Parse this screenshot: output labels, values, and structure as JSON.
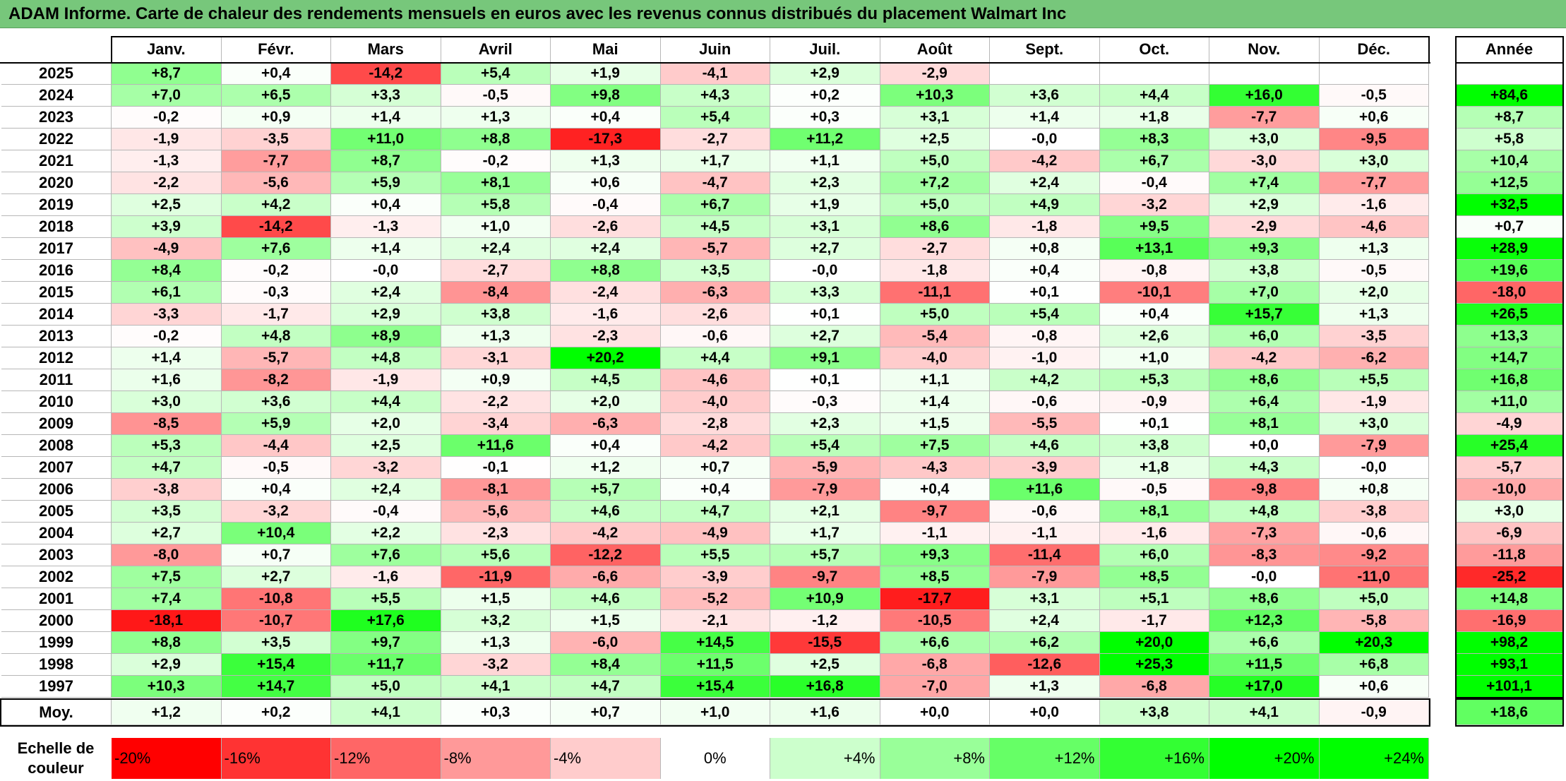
{
  "title": "ADAM Informe. Carte de chaleur des rendements mensuels en euros avec les revenus connus distribués du placement Walmart Inc",
  "chart_data": {
    "type": "heatmap",
    "title": "ADAM Informe. Carte de chaleur des rendements mensuels en euros avec les revenus connus distribués du placement Walmart Inc",
    "months": [
      "Janv.",
      "Févr.",
      "Mars",
      "Avril",
      "Mai",
      "Juin",
      "Juil.",
      "Août",
      "Sept.",
      "Oct.",
      "Nov.",
      "Déc."
    ],
    "year_header": "Année",
    "rows": [
      {
        "year": "2025",
        "values": [
          "+8,7",
          "+0,4",
          "-14,2",
          "+5,4",
          "+1,9",
          "-4,1",
          "+2,9",
          "-2,9",
          "",
          "",
          "",
          ""
        ],
        "annual": ""
      },
      {
        "year": "2024",
        "values": [
          "+7,0",
          "+6,5",
          "+3,3",
          "-0,5",
          "+9,8",
          "+4,3",
          "+0,2",
          "+10,3",
          "+3,6",
          "+4,4",
          "+16,0",
          "-0,5"
        ],
        "annual": "+84,6"
      },
      {
        "year": "2023",
        "values": [
          "-0,2",
          "+0,9",
          "+1,4",
          "+1,3",
          "+0,4",
          "+5,4",
          "+0,3",
          "+3,1",
          "+1,4",
          "+1,8",
          "-7,7",
          "+0,6"
        ],
        "annual": "+8,7"
      },
      {
        "year": "2022",
        "values": [
          "-1,9",
          "-3,5",
          "+11,0",
          "+8,8",
          "-17,3",
          "-2,7",
          "+11,2",
          "+2,5",
          "-0,0",
          "+8,3",
          "+3,0",
          "-9,5"
        ],
        "annual": "+5,8"
      },
      {
        "year": "2021",
        "values": [
          "-1,3",
          "-7,7",
          "+8,7",
          "-0,2",
          "+1,3",
          "+1,7",
          "+1,1",
          "+5,0",
          "-4,2",
          "+6,7",
          "-3,0",
          "+3,0"
        ],
        "annual": "+10,4"
      },
      {
        "year": "2020",
        "values": [
          "-2,2",
          "-5,6",
          "+5,9",
          "+8,1",
          "+0,6",
          "-4,7",
          "+2,3",
          "+7,2",
          "+2,4",
          "-0,4",
          "+7,4",
          "-7,7"
        ],
        "annual": "+12,5"
      },
      {
        "year": "2019",
        "values": [
          "+2,5",
          "+4,2",
          "+0,4",
          "+5,8",
          "-0,4",
          "+6,7",
          "+1,9",
          "+5,0",
          "+4,9",
          "-3,2",
          "+2,9",
          "-1,6"
        ],
        "annual": "+32,5"
      },
      {
        "year": "2018",
        "values": [
          "+3,9",
          "-14,2",
          "-1,3",
          "+1,0",
          "-2,6",
          "+4,5",
          "+3,1",
          "+8,6",
          "-1,8",
          "+9,5",
          "-2,9",
          "-4,6"
        ],
        "annual": "+0,7"
      },
      {
        "year": "2017",
        "values": [
          "-4,9",
          "+7,6",
          "+1,4",
          "+2,4",
          "+2,4",
          "-5,7",
          "+2,7",
          "-2,7",
          "+0,8",
          "+13,1",
          "+9,3",
          "+1,3"
        ],
        "annual": "+28,9"
      },
      {
        "year": "2016",
        "values": [
          "+8,4",
          "-0,2",
          "-0,0",
          "-2,7",
          "+8,8",
          "+3,5",
          "-0,0",
          "-1,8",
          "+0,4",
          "-0,8",
          "+3,8",
          "-0,5"
        ],
        "annual": "+19,6"
      },
      {
        "year": "2015",
        "values": [
          "+6,1",
          "-0,3",
          "+2,4",
          "-8,4",
          "-2,4",
          "-6,3",
          "+3,3",
          "-11,1",
          "+0,1",
          "-10,1",
          "+7,0",
          "+2,0"
        ],
        "annual": "-18,0"
      },
      {
        "year": "2014",
        "values": [
          "-3,3",
          "-1,7",
          "+2,9",
          "+3,8",
          "-1,6",
          "-2,6",
          "+0,1",
          "+5,0",
          "+5,4",
          "+0,4",
          "+15,7",
          "+1,3"
        ],
        "annual": "+26,5"
      },
      {
        "year": "2013",
        "values": [
          "-0,2",
          "+4,8",
          "+8,9",
          "+1,3",
          "-2,3",
          "-0,6",
          "+2,7",
          "-5,4",
          "-0,8",
          "+2,6",
          "+6,0",
          "-3,5"
        ],
        "annual": "+13,3"
      },
      {
        "year": "2012",
        "values": [
          "+1,4",
          "-5,7",
          "+4,8",
          "-3,1",
          "+20,2",
          "+4,4",
          "+9,1",
          "-4,0",
          "-1,0",
          "+1,0",
          "-4,2",
          "-6,2"
        ],
        "annual": "+14,7"
      },
      {
        "year": "2011",
        "values": [
          "+1,6",
          "-8,2",
          "-1,9",
          "+0,9",
          "+4,5",
          "-4,6",
          "+0,1",
          "+1,1",
          "+4,2",
          "+5,3",
          "+8,6",
          "+5,5"
        ],
        "annual": "+16,8"
      },
      {
        "year": "2010",
        "values": [
          "+3,0",
          "+3,6",
          "+4,4",
          "-2,2",
          "+2,0",
          "-4,0",
          "-0,3",
          "+1,4",
          "-0,6",
          "-0,9",
          "+6,4",
          "-1,9"
        ],
        "annual": "+11,0"
      },
      {
        "year": "2009",
        "values": [
          "-8,5",
          "+5,9",
          "+2,0",
          "-3,4",
          "-6,3",
          "-2,8",
          "+2,3",
          "+1,5",
          "-5,5",
          "+0,1",
          "+8,1",
          "+3,0"
        ],
        "annual": "-4,9"
      },
      {
        "year": "2008",
        "values": [
          "+5,3",
          "-4,4",
          "+2,5",
          "+11,6",
          "+0,4",
          "-4,2",
          "+5,4",
          "+7,5",
          "+4,6",
          "+3,8",
          "+0,0",
          "-7,9"
        ],
        "annual": "+25,4"
      },
      {
        "year": "2007",
        "values": [
          "+4,7",
          "-0,5",
          "-3,2",
          "-0,1",
          "+1,2",
          "+0,7",
          "-5,9",
          "-4,3",
          "-3,9",
          "+1,8",
          "+4,3",
          "-0,0"
        ],
        "annual": "-5,7"
      },
      {
        "year": "2006",
        "values": [
          "-3,8",
          "+0,4",
          "+2,4",
          "-8,1",
          "+5,7",
          "+0,4",
          "-7,9",
          "+0,4",
          "+11,6",
          "-0,5",
          "-9,8",
          "+0,8"
        ],
        "annual": "-10,0"
      },
      {
        "year": "2005",
        "values": [
          "+3,5",
          "-3,2",
          "-0,4",
          "-5,6",
          "+4,6",
          "+4,7",
          "+2,1",
          "-9,7",
          "-0,6",
          "+8,1",
          "+4,8",
          "-3,8"
        ],
        "annual": "+3,0"
      },
      {
        "year": "2004",
        "values": [
          "+2,7",
          "+10,4",
          "+2,2",
          "-2,3",
          "-4,2",
          "-4,9",
          "+1,7",
          "-1,1",
          "-1,1",
          "-1,6",
          "-7,3",
          "-0,6"
        ],
        "annual": "-6,9"
      },
      {
        "year": "2003",
        "values": [
          "-8,0",
          "+0,7",
          "+7,6",
          "+5,6",
          "-12,2",
          "+5,5",
          "+5,7",
          "+9,3",
          "-11,4",
          "+6,0",
          "-8,3",
          "-9,2"
        ],
        "annual": "-11,8"
      },
      {
        "year": "2002",
        "values": [
          "+7,5",
          "+2,7",
          "-1,6",
          "-11,9",
          "-6,6",
          "-3,9",
          "-9,7",
          "+8,5",
          "-7,9",
          "+8,5",
          "-0,0",
          "-11,0"
        ],
        "annual": "-25,2"
      },
      {
        "year": "2001",
        "values": [
          "+7,4",
          "-10,8",
          "+5,5",
          "+1,5",
          "+4,6",
          "-5,2",
          "+10,9",
          "-17,7",
          "+3,1",
          "+5,1",
          "+8,6",
          "+5,0"
        ],
        "annual": "+14,8"
      },
      {
        "year": "2000",
        "values": [
          "-18,1",
          "-10,7",
          "+17,6",
          "+3,2",
          "+1,5",
          "-2,1",
          "-1,2",
          "-10,5",
          "+2,4",
          "-1,7",
          "+12,3",
          "-5,8"
        ],
        "annual": "-16,9"
      },
      {
        "year": "1999",
        "values": [
          "+8,8",
          "+3,5",
          "+9,7",
          "+1,3",
          "-6,0",
          "+14,5",
          "-15,5",
          "+6,6",
          "+6,2",
          "+20,0",
          "+6,6",
          "+20,3"
        ],
        "annual": "+98,2"
      },
      {
        "year": "1998",
        "values": [
          "+2,9",
          "+15,4",
          "+11,7",
          "-3,2",
          "+8,4",
          "+11,5",
          "+2,5",
          "-6,8",
          "-12,6",
          "+25,3",
          "+11,5",
          "+6,8"
        ],
        "annual": "+93,1"
      },
      {
        "year": "1997",
        "values": [
          "+10,3",
          "+14,7",
          "+5,0",
          "+4,1",
          "+4,7",
          "+15,4",
          "+16,8",
          "-7,0",
          "+1,3",
          "-6,8",
          "+17,0",
          "+0,6"
        ],
        "annual": "+101,1"
      }
    ],
    "average": {
      "label": "Moy.",
      "values": [
        "+1,2",
        "+0,2",
        "+4,1",
        "+0,3",
        "+0,7",
        "+1,0",
        "+1,6",
        "+0,0",
        "+0,0",
        "+3,8",
        "+4,1",
        "-0,9"
      ],
      "annual": "+18,6"
    },
    "color_scale": {
      "label_line1": "Echelle de",
      "label_line2": "couleur",
      "steps": [
        "-20%",
        "-16%",
        "-12%",
        "-8%",
        "-4%",
        "0%",
        "+4%",
        "+8%",
        "+12%",
        "+16%",
        "+20%",
        "+24%"
      ],
      "step_values": [
        -20,
        -16,
        -12,
        -8,
        -4,
        0,
        4,
        8,
        12,
        16,
        20,
        24
      ],
      "negative_color": "#ff0000",
      "neutral_color": "#ffffff",
      "positive_color": "#00ff00"
    }
  }
}
